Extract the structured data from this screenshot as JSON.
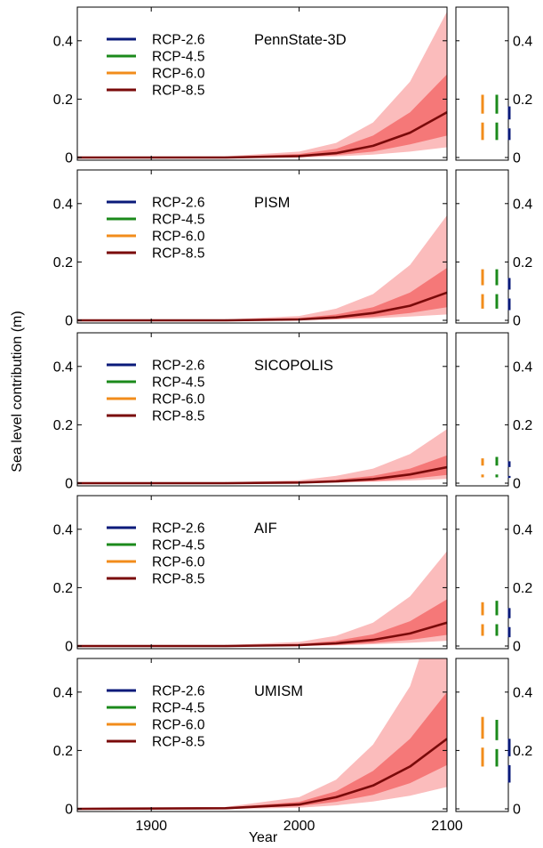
{
  "figure": {
    "ylabel": "Sea level contribution (m)",
    "xlabel": "Year"
  },
  "colors": {
    "RCP-2.6": "#0a1a7a",
    "RCP-4.5": "#1b8a1b",
    "RCP-6.0": "#f28c1b",
    "RCP-8.5": "#7a0a0a",
    "band_outer": "#fbbcbc",
    "band_inner": "#f57878"
  },
  "chart_data": [
    {
      "type": "line",
      "model": "PennState-3D",
      "x_range": [
        1850,
        2100
      ],
      "ylim": [
        0,
        0.5
      ],
      "x_ticks": [
        "1900",
        "2000",
        "2100"
      ],
      "y_ticks": [
        "0",
        "0.2",
        "0.4"
      ],
      "legend": [
        "RCP-2.6",
        "RCP-4.5",
        "RCP-6.0",
        "RCP-8.5"
      ],
      "series": [
        {
          "name": "RCP-8.5",
          "x": [
            1850,
            1950,
            2000,
            2025,
            2050,
            2075,
            2100
          ],
          "y": [
            0.0,
            0.0,
            0.005,
            0.015,
            0.04,
            0.085,
            0.155
          ]
        }
      ],
      "bands": [
        {
          "level": "outer",
          "x": [
            1850,
            1950,
            2000,
            2025,
            2050,
            2075,
            2100
          ],
          "low": [
            -0.002,
            -0.002,
            0.0,
            0.004,
            0.01,
            0.02,
            0.035
          ],
          "high": [
            0.002,
            0.004,
            0.02,
            0.05,
            0.12,
            0.26,
            0.5
          ]
        },
        {
          "level": "inner",
          "x": [
            1850,
            1950,
            2000,
            2025,
            2050,
            2075,
            2100
          ],
          "low": [
            0.0,
            0.0,
            0.002,
            0.008,
            0.02,
            0.045,
            0.075
          ],
          "high": [
            0.001,
            0.002,
            0.012,
            0.03,
            0.075,
            0.155,
            0.285
          ]
        }
      ],
      "ranges_2100": [
        {
          "name": "RCP-6.0",
          "low": 0.06,
          "median": 0.135,
          "high": 0.215
        },
        {
          "name": "RCP-4.5",
          "low": 0.06,
          "median": 0.135,
          "high": 0.215
        },
        {
          "name": "RCP-2.6",
          "low": 0.06,
          "median": 0.115,
          "high": 0.175
        }
      ]
    },
    {
      "type": "line",
      "model": "PISM",
      "x_range": [
        1850,
        2100
      ],
      "ylim": [
        0,
        0.5
      ],
      "x_ticks": [
        "1900",
        "2000",
        "2100"
      ],
      "y_ticks": [
        "0",
        "0.2",
        "0.4"
      ],
      "legend": [
        "RCP-2.6",
        "RCP-4.5",
        "RCP-6.0",
        "RCP-8.5"
      ],
      "series": [
        {
          "name": "RCP-8.5",
          "x": [
            1850,
            1950,
            2000,
            2025,
            2050,
            2075,
            2100
          ],
          "y": [
            0.0,
            0.0,
            0.003,
            0.01,
            0.025,
            0.05,
            0.095
          ]
        }
      ],
      "bands": [
        {
          "level": "outer",
          "x": [
            1850,
            1950,
            2000,
            2025,
            2050,
            2075,
            2100
          ],
          "low": [
            -0.002,
            -0.002,
            0.0,
            0.003,
            0.007,
            0.013,
            0.02
          ],
          "high": [
            0.002,
            0.003,
            0.015,
            0.04,
            0.09,
            0.19,
            0.36
          ]
        },
        {
          "level": "inner",
          "x": [
            1850,
            1950,
            2000,
            2025,
            2050,
            2075,
            2100
          ],
          "low": [
            0.0,
            0.0,
            0.001,
            0.005,
            0.012,
            0.025,
            0.045
          ],
          "high": [
            0.001,
            0.002,
            0.008,
            0.02,
            0.045,
            0.095,
            0.18
          ]
        }
      ],
      "ranges_2100": [
        {
          "name": "RCP-6.0",
          "low": 0.04,
          "median": 0.105,
          "high": 0.175
        },
        {
          "name": "RCP-4.5",
          "low": 0.04,
          "median": 0.105,
          "high": 0.175
        },
        {
          "name": "RCP-2.6",
          "low": 0.035,
          "median": 0.09,
          "high": 0.145
        }
      ]
    },
    {
      "type": "line",
      "model": "SICOPOLIS",
      "x_range": [
        1850,
        2100
      ],
      "ylim": [
        0,
        0.5
      ],
      "x_ticks": [
        "1900",
        "2000",
        "2100"
      ],
      "y_ticks": [
        "0",
        "0.2",
        "0.4"
      ],
      "legend": [
        "RCP-2.6",
        "RCP-4.5",
        "RCP-6.0",
        "RCP-8.5"
      ],
      "series": [
        {
          "name": "RCP-8.5",
          "x": [
            1850,
            1950,
            2000,
            2025,
            2050,
            2075,
            2100
          ],
          "y": [
            0.0,
            0.0,
            0.002,
            0.006,
            0.014,
            0.03,
            0.055
          ]
        }
      ],
      "bands": [
        {
          "level": "outer",
          "x": [
            1850,
            1950,
            2000,
            2025,
            2050,
            2075,
            2100
          ],
          "low": [
            -0.002,
            -0.002,
            0.0,
            0.002,
            0.005,
            0.009,
            0.015
          ],
          "high": [
            0.002,
            0.003,
            0.01,
            0.025,
            0.05,
            0.1,
            0.185
          ]
        },
        {
          "level": "inner",
          "x": [
            1850,
            1950,
            2000,
            2025,
            2050,
            2075,
            2100
          ],
          "low": [
            0.0,
            0.0,
            0.001,
            0.003,
            0.007,
            0.015,
            0.028
          ],
          "high": [
            0.001,
            0.002,
            0.005,
            0.012,
            0.025,
            0.05,
            0.095
          ]
        }
      ],
      "ranges_2100": [
        {
          "name": "RCP-6.0",
          "low": 0.02,
          "median": 0.045,
          "high": 0.085
        },
        {
          "name": "RCP-4.5",
          "low": 0.02,
          "median": 0.045,
          "high": 0.09
        },
        {
          "name": "RCP-2.6",
          "low": 0.018,
          "median": 0.04,
          "high": 0.075
        }
      ]
    },
    {
      "type": "line",
      "model": "AIF",
      "x_range": [
        1850,
        2100
      ],
      "ylim": [
        0,
        0.5
      ],
      "x_ticks": [
        "1900",
        "2000",
        "2100"
      ],
      "y_ticks": [
        "0",
        "0.2",
        "0.4"
      ],
      "legend": [
        "RCP-2.6",
        "RCP-4.5",
        "RCP-6.0",
        "RCP-8.5"
      ],
      "series": [
        {
          "name": "RCP-8.5",
          "x": [
            1850,
            1950,
            2000,
            2025,
            2050,
            2075,
            2100
          ],
          "y": [
            0.0,
            0.0,
            0.003,
            0.009,
            0.021,
            0.043,
            0.08
          ]
        }
      ],
      "bands": [
        {
          "level": "outer",
          "x": [
            1850,
            1950,
            2000,
            2025,
            2050,
            2075,
            2100
          ],
          "low": [
            -0.002,
            -0.002,
            0.0,
            0.002,
            0.006,
            0.011,
            0.018
          ],
          "high": [
            0.002,
            0.003,
            0.014,
            0.035,
            0.08,
            0.17,
            0.325
          ]
        },
        {
          "level": "inner",
          "x": [
            1850,
            1950,
            2000,
            2025,
            2050,
            2075,
            2100
          ],
          "low": [
            0.0,
            0.0,
            0.001,
            0.004,
            0.01,
            0.021,
            0.038
          ],
          "high": [
            0.001,
            0.002,
            0.007,
            0.018,
            0.04,
            0.085,
            0.16
          ]
        }
      ],
      "ranges_2100": [
        {
          "name": "RCP-6.0",
          "low": 0.035,
          "median": 0.09,
          "high": 0.15
        },
        {
          "name": "RCP-4.5",
          "low": 0.035,
          "median": 0.09,
          "high": 0.155
        },
        {
          "name": "RCP-2.6",
          "low": 0.03,
          "median": 0.08,
          "high": 0.13
        }
      ]
    },
    {
      "type": "line",
      "model": "UMISM",
      "x_range": [
        1850,
        2100
      ],
      "ylim": [
        0,
        0.5
      ],
      "x_ticks": [
        "1900",
        "2000",
        "2100"
      ],
      "y_ticks": [
        "0",
        "0.2",
        "0.4"
      ],
      "legend": [
        "RCP-2.6",
        "RCP-4.5",
        "RCP-6.0",
        "RCP-8.5"
      ],
      "series": [
        {
          "name": "RCP-8.5",
          "x": [
            1850,
            1950,
            2000,
            2025,
            2050,
            2075,
            2100
          ],
          "y": [
            0.0,
            0.002,
            0.015,
            0.04,
            0.08,
            0.145,
            0.24
          ]
        }
      ],
      "bands": [
        {
          "level": "outer",
          "x": [
            1850,
            1950,
            2000,
            2025,
            2050,
            2075,
            2100
          ],
          "low": [
            -0.002,
            -0.001,
            0.004,
            0.012,
            0.025,
            0.045,
            0.075
          ],
          "high": [
            0.002,
            0.006,
            0.04,
            0.1,
            0.22,
            0.42,
            0.8
          ]
        },
        {
          "level": "inner",
          "x": [
            1850,
            1950,
            2000,
            2025,
            2050,
            2075,
            2100
          ],
          "low": [
            0.0,
            0.001,
            0.009,
            0.024,
            0.048,
            0.088,
            0.15
          ],
          "high": [
            0.001,
            0.004,
            0.024,
            0.06,
            0.13,
            0.24,
            0.4
          ]
        }
      ],
      "ranges_2100": [
        {
          "name": "RCP-6.0",
          "low": 0.145,
          "median": 0.225,
          "high": 0.315
        },
        {
          "name": "RCP-4.5",
          "low": 0.145,
          "median": 0.22,
          "high": 0.305
        },
        {
          "name": "RCP-2.6",
          "low": 0.09,
          "median": 0.165,
          "high": 0.24
        }
      ]
    }
  ]
}
